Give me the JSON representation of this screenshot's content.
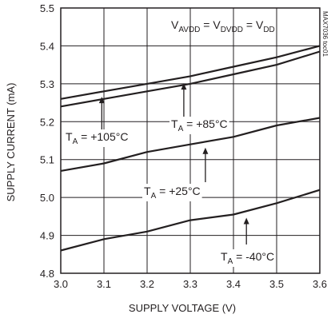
{
  "chart_data": {
    "type": "line",
    "xlabel": "SUPPLY VOLTAGE (V)",
    "ylabel": "SUPPLY CURRENT (mA)",
    "xlim": [
      3.0,
      3.6
    ],
    "ylim": [
      4.8,
      5.5
    ],
    "xticks": [
      "3.0",
      "3.1",
      "3.2",
      "3.3",
      "3.4",
      "3.5",
      "3.6"
    ],
    "yticks": [
      "4.8",
      "4.9",
      "5.0",
      "5.1",
      "5.2",
      "5.3",
      "5.4",
      "5.5"
    ],
    "grid": true,
    "x": [
      3.0,
      3.1,
      3.2,
      3.3,
      3.4,
      3.5,
      3.6
    ],
    "series": [
      {
        "name": "TA = +105°C",
        "values": [
          5.26,
          5.28,
          5.3,
          5.32,
          5.345,
          5.37,
          5.4
        ]
      },
      {
        "name": "TA = +85°C",
        "values": [
          5.24,
          5.26,
          5.28,
          5.3,
          5.325,
          5.35,
          5.385
        ]
      },
      {
        "name": "TA = +25°C",
        "values": [
          5.07,
          5.09,
          5.12,
          5.14,
          5.16,
          5.19,
          5.21
        ]
      },
      {
        "name": "TA = -40°C",
        "values": [
          4.86,
          4.89,
          4.91,
          4.94,
          4.955,
          4.985,
          5.02
        ]
      }
    ],
    "annotations": {
      "condition": {
        "main": "V",
        "sub1": "AVDD",
        "eq1": " = V",
        "sub2": "DVDD",
        "eq2": " = V",
        "sub3": "DD"
      },
      "t105": {
        "pre": "T",
        "sub": "A",
        "post": " = +105°C",
        "x": 3.095,
        "y": 5.27
      },
      "t85": {
        "pre": "T",
        "sub": "A",
        "post": " = +85°C",
        "x": 3.285,
        "y": 5.31
      },
      "t25": {
        "pre": "T",
        "sub": "A",
        "post": " = +25°C",
        "x": 3.335,
        "y": 5.14
      },
      "tm40": {
        "pre": "T",
        "sub": "A",
        "post": " = -40°C",
        "x": 3.43,
        "y": 4.955
      }
    },
    "watermark": "MAX7036 toc01"
  }
}
